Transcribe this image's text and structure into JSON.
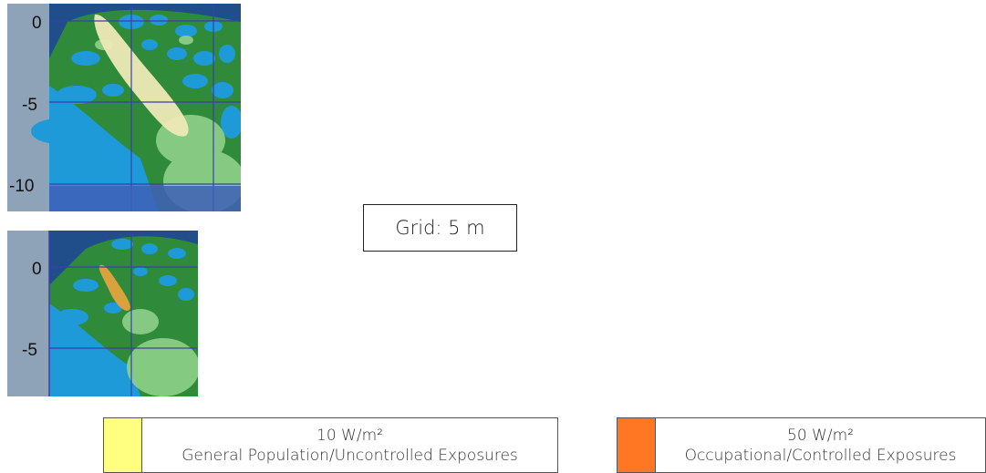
{
  "plots": [
    {
      "name": "top-exposure-plot",
      "y_ticks": [
        "0",
        "-5",
        "-10"
      ],
      "plume_color": "#eee9b6"
    },
    {
      "name": "bottom-exposure-plot",
      "y_ticks": [
        "0",
        "-5"
      ],
      "plume_color": "#d9a23c"
    }
  ],
  "grid_label": "Grid: 5 m",
  "legend": [
    {
      "value": "10 W/m²",
      "description": "General Population/Uncontrolled Exposures",
      "color": "#ffff80"
    },
    {
      "value": "50 W/m²",
      "description": "Occupational/Controlled Exposures",
      "color": "#ff7722"
    }
  ]
}
